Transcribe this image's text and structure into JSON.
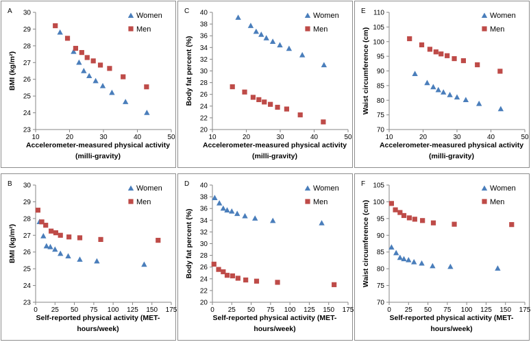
{
  "colors": {
    "women": "#4a7ebb",
    "men": "#be4b48",
    "axis": "#868686",
    "border": "#8c8c8c"
  },
  "chart_data": [
    {
      "letter": "A",
      "type": "scatter",
      "xlabel": [
        "Accelerometer-measured physical activity",
        "(milli-gravity)"
      ],
      "ylabel": "BMI (kg/m²)",
      "xlim": [
        10,
        50
      ],
      "ylim": [
        23,
        30
      ],
      "xticks": [
        10,
        20,
        30,
        40,
        50
      ],
      "yticks": [
        23,
        24,
        25,
        26,
        27,
        28,
        29,
        30
      ],
      "legend": [
        "Women",
        "Men"
      ],
      "series": [
        {
          "name": "Women",
          "marker": "triangle",
          "points": [
            [
              17.2,
              28.8
            ],
            [
              21.2,
              27.65
            ],
            [
              22.8,
              27.0
            ],
            [
              24.2,
              26.5
            ],
            [
              25.8,
              26.2
            ],
            [
              27.7,
              25.9
            ],
            [
              29.8,
              25.6
            ],
            [
              32.5,
              25.2
            ],
            [
              36.5,
              24.65
            ],
            [
              42.8,
              24.0
            ]
          ]
        },
        {
          "name": "Men",
          "marker": "square",
          "points": [
            [
              15.8,
              29.2
            ],
            [
              19.4,
              28.45
            ],
            [
              21.8,
              27.85
            ],
            [
              23.6,
              27.6
            ],
            [
              25.2,
              27.3
            ],
            [
              27.0,
              27.1
            ],
            [
              29.1,
              26.85
            ],
            [
              31.8,
              26.65
            ],
            [
              35.8,
              26.15
            ],
            [
              42.7,
              25.55
            ]
          ]
        }
      ]
    },
    {
      "letter": "C",
      "type": "scatter",
      "xlabel": [
        "Accelerometer-measured physical activity",
        "(milli-gravity)"
      ],
      "ylabel": "Body fat percent (%)",
      "xlim": [
        10,
        50
      ],
      "ylim": [
        20,
        40
      ],
      "xticks": [
        10,
        20,
        30,
        40,
        50
      ],
      "yticks": [
        20,
        22,
        24,
        26,
        28,
        30,
        32,
        34,
        36,
        38,
        40
      ],
      "legend": [
        "Women",
        "Men"
      ],
      "series": [
        {
          "name": "Women",
          "marker": "triangle",
          "points": [
            [
              17.6,
              39.1
            ],
            [
              21.3,
              37.7
            ],
            [
              22.9,
              36.7
            ],
            [
              24.4,
              36.2
            ],
            [
              25.9,
              35.6
            ],
            [
              27.8,
              35.0
            ],
            [
              29.9,
              34.4
            ],
            [
              32.6,
              33.8
            ],
            [
              36.5,
              32.7
            ],
            [
              42.9,
              31.0
            ]
          ]
        },
        {
          "name": "Men",
          "marker": "square",
          "points": [
            [
              15.9,
              27.3
            ],
            [
              19.5,
              26.4
            ],
            [
              22.0,
              25.5
            ],
            [
              23.7,
              25.1
            ],
            [
              25.3,
              24.7
            ],
            [
              27.1,
              24.3
            ],
            [
              29.2,
              23.8
            ],
            [
              31.9,
              23.5
            ],
            [
              35.9,
              22.5
            ],
            [
              42.7,
              21.3
            ]
          ]
        }
      ]
    },
    {
      "letter": "E",
      "type": "scatter",
      "xlabel": [
        "Accelerometer-measured physical activity",
        "(milli-gravity)"
      ],
      "ylabel": "Waist circumference (cm)",
      "xlim": [
        10,
        50
      ],
      "ylim": [
        70,
        110
      ],
      "xticks": [
        10,
        20,
        30,
        40,
        50
      ],
      "yticks": [
        70,
        75,
        80,
        85,
        90,
        95,
        100,
        105,
        110
      ],
      "legend": [
        "Women",
        "Men"
      ],
      "series": [
        {
          "name": "Women",
          "marker": "triangle",
          "points": [
            [
              17.6,
              89.0
            ],
            [
              21.2,
              85.9
            ],
            [
              23.0,
              84.5
            ],
            [
              24.5,
              83.5
            ],
            [
              26.0,
              82.7
            ],
            [
              27.9,
              81.8
            ],
            [
              30.0,
              81.0
            ],
            [
              32.6,
              80.1
            ],
            [
              36.5,
              78.8
            ],
            [
              42.9,
              77.0
            ]
          ]
        },
        {
          "name": "Men",
          "marker": "square",
          "points": [
            [
              16.0,
              101.0
            ],
            [
              19.6,
              98.9
            ],
            [
              22.0,
              97.4
            ],
            [
              23.8,
              96.5
            ],
            [
              25.3,
              95.8
            ],
            [
              27.1,
              95.2
            ],
            [
              29.2,
              94.2
            ],
            [
              31.9,
              93.5
            ],
            [
              36.0,
              92.1
            ],
            [
              42.7,
              89.9
            ]
          ]
        }
      ]
    },
    {
      "letter": "B",
      "type": "scatter",
      "xlabel": [
        "Self-reported physical activity (MET-",
        "hours/week)"
      ],
      "ylabel": "BMI (kg/m²)",
      "xlim": [
        0,
        175
      ],
      "ylim": [
        23,
        30
      ],
      "xticks": [
        0,
        25,
        50,
        75,
        100,
        125,
        150,
        175
      ],
      "yticks": [
        23,
        24,
        25,
        26,
        27,
        28,
        29,
        30
      ],
      "legend": [
        "Women",
        "Men"
      ],
      "series": [
        {
          "name": "Women",
          "marker": "triangle",
          "points": [
            [
              5.0,
              27.8
            ],
            [
              10.0,
              26.95
            ],
            [
              14.0,
              26.35
            ],
            [
              19.0,
              26.3
            ],
            [
              25.0,
              26.15
            ],
            [
              32.0,
              25.9
            ],
            [
              42.0,
              25.75
            ],
            [
              57.0,
              25.55
            ],
            [
              79.0,
              25.45
            ],
            [
              140.0,
              25.25
            ]
          ]
        },
        {
          "name": "Men",
          "marker": "square",
          "points": [
            [
              3.0,
              28.5
            ],
            [
              8.0,
              27.8
            ],
            [
              13.0,
              27.6
            ],
            [
              20.0,
              27.25
            ],
            [
              26.0,
              27.15
            ],
            [
              32.0,
              27.0
            ],
            [
              43.0,
              26.9
            ],
            [
              57.0,
              26.85
            ],
            [
              84.0,
              26.75
            ],
            [
              158.0,
              26.7
            ]
          ]
        }
      ]
    },
    {
      "letter": "D",
      "type": "scatter",
      "xlabel": [
        "Self-reported physical activity (MET-",
        "hours/week)"
      ],
      "ylabel": "Body fat percent (%)",
      "xlim": [
        0,
        175
      ],
      "ylim": [
        20,
        40
      ],
      "xticks": [
        0,
        25,
        50,
        75,
        100,
        125,
        150,
        175
      ],
      "yticks": [
        20,
        22,
        24,
        26,
        28,
        30,
        32,
        34,
        36,
        38,
        40
      ],
      "legend": [
        "Women",
        "Men"
      ],
      "series": [
        {
          "name": "Women",
          "marker": "triangle",
          "points": [
            [
              3.0,
              37.8
            ],
            [
              9.0,
              36.9
            ],
            [
              14.0,
              36.0
            ],
            [
              19.0,
              35.7
            ],
            [
              25.0,
              35.5
            ],
            [
              32.0,
              35.1
            ],
            [
              42.0,
              34.7
            ],
            [
              55.0,
              34.3
            ],
            [
              78.0,
              33.9
            ],
            [
              141.0,
              33.5
            ]
          ]
        },
        {
          "name": "Men",
          "marker": "square",
          "points": [
            [
              2.0,
              26.5
            ],
            [
              8.0,
              25.6
            ],
            [
              14.0,
              25.2
            ],
            [
              19.0,
              24.6
            ],
            [
              26.0,
              24.5
            ],
            [
              33.0,
              24.1
            ],
            [
              43.0,
              23.8
            ],
            [
              57.0,
              23.6
            ],
            [
              84.0,
              23.4
            ],
            [
              157.0,
              23.0
            ]
          ]
        }
      ]
    },
    {
      "letter": "F",
      "type": "scatter",
      "xlabel": [
        "Self-reported physical activity (MET-",
        "hours/week)"
      ],
      "ylabel": "Waist circumference (cm)",
      "xlim": [
        0,
        175
      ],
      "ylim": [
        70,
        105
      ],
      "xticks": [
        0,
        25,
        50,
        75,
        100,
        125,
        150,
        175
      ],
      "yticks": [
        70,
        75,
        80,
        85,
        90,
        95,
        100,
        105
      ],
      "legend": [
        "Women",
        "Men"
      ],
      "series": [
        {
          "name": "Women",
          "marker": "triangle",
          "points": [
            [
              3.0,
              86.4
            ],
            [
              9.0,
              84.7
            ],
            [
              14.0,
              83.3
            ],
            [
              19.0,
              82.9
            ],
            [
              25.0,
              82.6
            ],
            [
              32.0,
              82.0
            ],
            [
              42.0,
              81.6
            ],
            [
              56.0,
              80.8
            ],
            [
              79.0,
              80.6
            ],
            [
              140.0,
              80.1
            ]
          ]
        },
        {
          "name": "Men",
          "marker": "square",
          "points": [
            [
              3.0,
              99.5
            ],
            [
              8.0,
              97.6
            ],
            [
              14.0,
              96.8
            ],
            [
              19.0,
              95.9
            ],
            [
              26.0,
              95.2
            ],
            [
              33.0,
              94.8
            ],
            [
              43.0,
              94.4
            ],
            [
              57.0,
              93.7
            ],
            [
              84.0,
              93.3
            ],
            [
              158.0,
              93.2
            ]
          ]
        }
      ]
    }
  ]
}
